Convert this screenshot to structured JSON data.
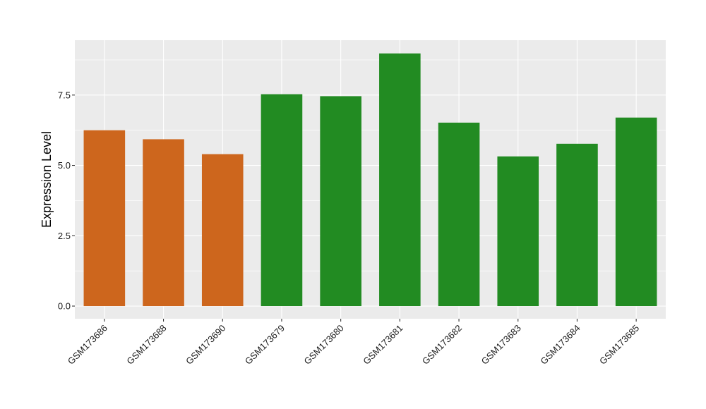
{
  "chart_data": {
    "type": "bar",
    "title": "",
    "xlabel": "",
    "ylabel": "Expression Level",
    "categories": [
      "GSM173686",
      "GSM173688",
      "GSM173690",
      "GSM173679",
      "GSM173680",
      "GSM173681",
      "GSM173682",
      "GSM173683",
      "GSM173684",
      "GSM173685"
    ],
    "values": [
      6.25,
      5.93,
      5.4,
      7.53,
      7.46,
      8.98,
      6.52,
      5.32,
      5.77,
      6.7
    ],
    "bar_colors": [
      "#CD661D",
      "#CD661D",
      "#CD661D",
      "#228B22",
      "#228B22",
      "#228B22",
      "#228B22",
      "#228B22",
      "#228B22",
      "#228B22"
    ],
    "ylim": [
      -0.45,
      9.45
    ],
    "y_ticks": [
      0,
      2.5,
      5,
      7.5
    ],
    "y_tick_labels": [
      "0.0",
      "2.5",
      "5.0",
      "7.5"
    ],
    "grid": true,
    "panel_background": "#EBEBEB",
    "grid_color": "#FFFFFF"
  }
}
